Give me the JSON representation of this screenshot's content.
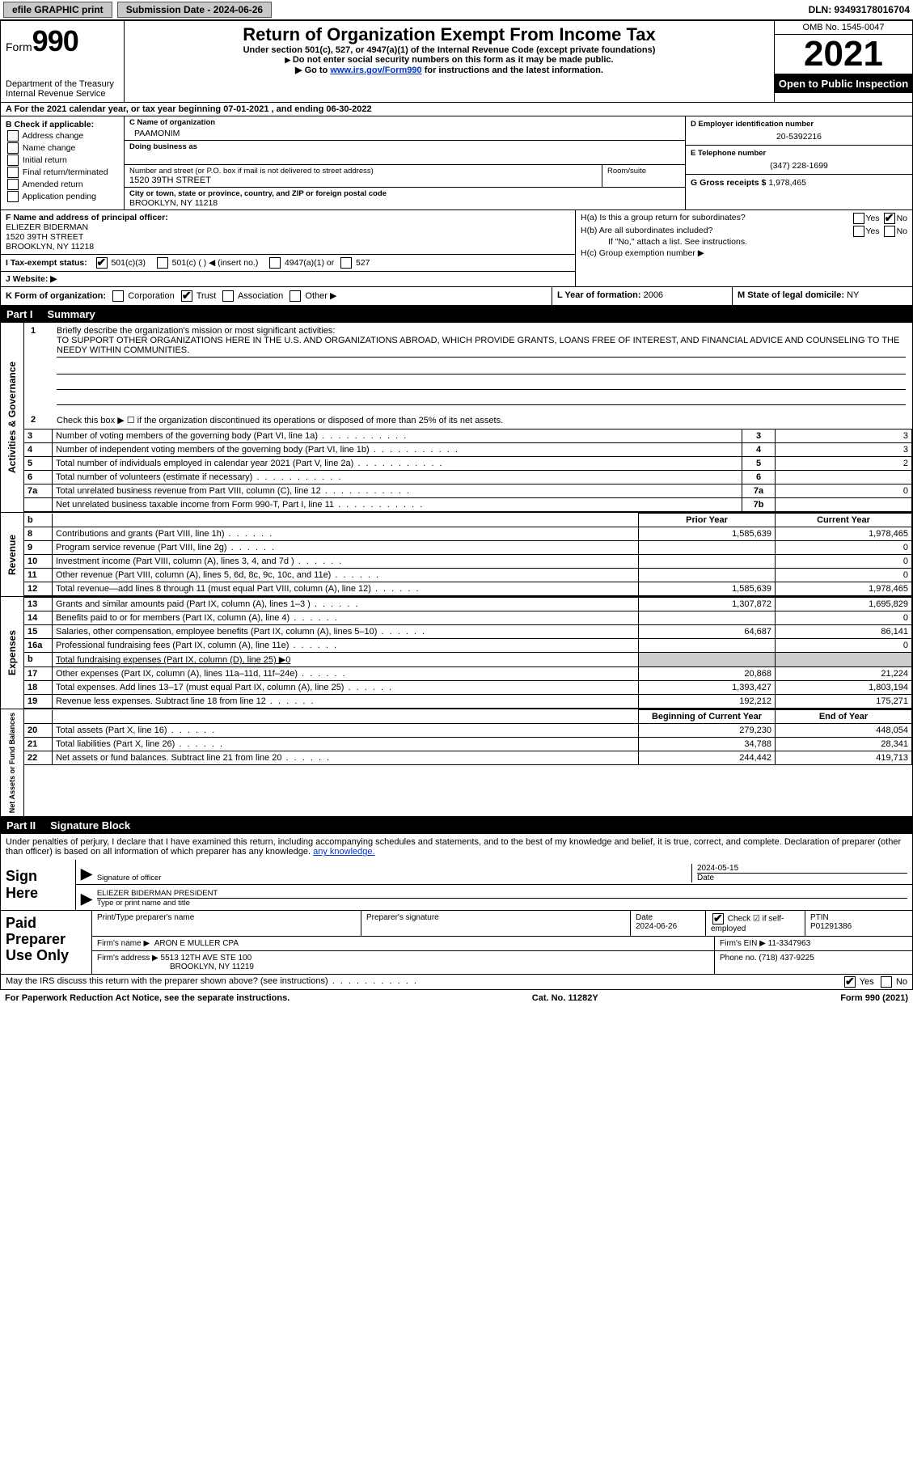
{
  "topbar": {
    "efile_btn": "efile GRAPHIC print",
    "submission_label": "Submission Date - 2024-06-26",
    "dln": "DLN: 93493178016704"
  },
  "header": {
    "form_label": "Form",
    "form_number": "990",
    "dept": "Department of the Treasury",
    "irs": "Internal Revenue Service",
    "title": "Return of Organization Exempt From Income Tax",
    "sub1": "Under section 501(c), 527, or 4947(a)(1) of the Internal Revenue Code (except private foundations)",
    "sub2": "Do not enter social security numbers on this form as it may be made public.",
    "sub3_pre": "Go to ",
    "sub3_link": "www.irs.gov/Form990",
    "sub3_post": " for instructions and the latest information.",
    "omb": "OMB No. 1545-0047",
    "year": "2021",
    "open": "Open to Public Inspection"
  },
  "row_a": "A  For the 2021 calendar year, or tax year beginning 07-01-2021    , and ending 06-30-2022",
  "section_b": {
    "label": "B Check if applicable:",
    "opts": [
      "Address change",
      "Name change",
      "Initial return",
      "Final return/terminated",
      "Amended return",
      "Application pending"
    ]
  },
  "section_c": {
    "name_lab": "C Name of organization",
    "name_val": "PAAMONIM",
    "dba_lab": "Doing business as",
    "addr_lab": "Number and street (or P.O. box if mail is not delivered to street address)",
    "room_lab": "Room/suite",
    "addr_val": "1520 39TH STREET",
    "city_lab": "City or town, state or province, country, and ZIP or foreign postal code",
    "city_val": "BROOKLYN, NY  11218"
  },
  "section_d": {
    "ein_lab": "D Employer identification number",
    "ein_val": "20-5392216",
    "tel_lab": "E Telephone number",
    "tel_val": "(347) 228-1699",
    "gross_lab": "G Gross receipts $",
    "gross_val": "1,978,465"
  },
  "section_f": {
    "lab": "F Name and address of principal officer:",
    "name": "ELIEZER BIDERMAN",
    "addr1": "1520 39TH STREET",
    "addr2": "BROOKLYN, NY  11218"
  },
  "section_h": {
    "a": "H(a)  Is this a group return for subordinates?",
    "b": "H(b)  Are all subordinates included?",
    "bnote": "If \"No,\" attach a list. See instructions.",
    "c": "H(c)  Group exemption number ▶"
  },
  "section_i": {
    "lab": "I  Tax-exempt status:",
    "o1": "501(c)(3)",
    "o2": "501(c) (  ) ◀ (insert no.)",
    "o3": "4947(a)(1) or",
    "o4": "527"
  },
  "section_j": "J  Website: ▶",
  "section_k": {
    "lab": "K Form of organization:",
    "opts": [
      "Corporation",
      "Trust",
      "Association",
      "Other ▶"
    ]
  },
  "section_l": {
    "lab": "L Year of formation:",
    "val": "2006"
  },
  "section_m": {
    "lab": "M State of legal domicile:",
    "val": "NY"
  },
  "part1": {
    "bar": "Part I",
    "title": "Summary"
  },
  "summary": {
    "l1_lab": "Briefly describe the organization's mission or most significant activities:",
    "l1_val": "TO SUPPORT OTHER ORGANIZATIONS HERE IN THE U.S. AND ORGANIZATIONS ABROAD, WHICH PROVIDE GRANTS, LOANS FREE OF INTEREST, AND FINANCIAL ADVICE AND COUNSELING TO THE NEEDY WITHIN COMMUNITIES.",
    "l2": "Check this box ▶ ☐  if the organization discontinued its operations or disposed of more than 25% of its net assets.",
    "rows_single": [
      {
        "n": "3",
        "d": "Number of voting members of the governing body (Part VI, line 1a)",
        "box": "3",
        "v": "3"
      },
      {
        "n": "4",
        "d": "Number of independent voting members of the governing body (Part VI, line 1b)",
        "box": "4",
        "v": "3"
      },
      {
        "n": "5",
        "d": "Total number of individuals employed in calendar year 2021 (Part V, line 2a)",
        "box": "5",
        "v": "2"
      },
      {
        "n": "6",
        "d": "Total number of volunteers (estimate if necessary)",
        "box": "6",
        "v": ""
      },
      {
        "n": "7a",
        "d": "Total unrelated business revenue from Part VIII, column (C), line 12",
        "box": "7a",
        "v": "0"
      },
      {
        "n": "",
        "d": "Net unrelated business taxable income from Form 990-T, Part I, line 11",
        "box": "7b",
        "v": ""
      }
    ],
    "hdr_b": "b",
    "col_prior": "Prior Year",
    "col_current": "Current Year",
    "rev": [
      {
        "n": "8",
        "d": "Contributions and grants (Part VIII, line 1h)",
        "p": "1,585,639",
        "c": "1,978,465"
      },
      {
        "n": "9",
        "d": "Program service revenue (Part VIII, line 2g)",
        "p": "",
        "c": "0"
      },
      {
        "n": "10",
        "d": "Investment income (Part VIII, column (A), lines 3, 4, and 7d )",
        "p": "",
        "c": "0"
      },
      {
        "n": "11",
        "d": "Other revenue (Part VIII, column (A), lines 5, 6d, 8c, 9c, 10c, and 11e)",
        "p": "",
        "c": "0"
      },
      {
        "n": "12",
        "d": "Total revenue—add lines 8 through 11 (must equal Part VIII, column (A), line 12)",
        "p": "1,585,639",
        "c": "1,978,465"
      }
    ],
    "exp": [
      {
        "n": "13",
        "d": "Grants and similar amounts paid (Part IX, column (A), lines 1–3 )",
        "p": "1,307,872",
        "c": "1,695,829"
      },
      {
        "n": "14",
        "d": "Benefits paid to or for members (Part IX, column (A), line 4)",
        "p": "",
        "c": "0"
      },
      {
        "n": "15",
        "d": "Salaries, other compensation, employee benefits (Part IX, column (A), lines 5–10)",
        "p": "64,687",
        "c": "86,141"
      },
      {
        "n": "16a",
        "d": "Professional fundraising fees (Part IX, column (A), line 11e)",
        "p": "",
        "c": "0"
      },
      {
        "n": "b",
        "d": "Total fundraising expenses (Part IX, column (D), line 25) ▶0",
        "p": "__shade__",
        "c": "__shade__"
      },
      {
        "n": "17",
        "d": "Other expenses (Part IX, column (A), lines 11a–11d, 11f–24e)",
        "p": "20,868",
        "c": "21,224"
      },
      {
        "n": "18",
        "d": "Total expenses. Add lines 13–17 (must equal Part IX, column (A), line 25)",
        "p": "1,393,427",
        "c": "1,803,194"
      },
      {
        "n": "19",
        "d": "Revenue less expenses. Subtract line 18 from line 12",
        "p": "192,212",
        "c": "175,271"
      }
    ],
    "col_begin": "Beginning of Current Year",
    "col_end": "End of Year",
    "net": [
      {
        "n": "20",
        "d": "Total assets (Part X, line 16)",
        "p": "279,230",
        "c": "448,054"
      },
      {
        "n": "21",
        "d": "Total liabilities (Part X, line 26)",
        "p": "34,788",
        "c": "28,341"
      },
      {
        "n": "22",
        "d": "Net assets or fund balances. Subtract line 21 from line 20",
        "p": "244,442",
        "c": "419,713"
      }
    ],
    "tab_ag": "Activities & Governance",
    "tab_rev": "Revenue",
    "tab_exp": "Expenses",
    "tab_net": "Net Assets or Fund Balances"
  },
  "part2": {
    "bar": "Part II",
    "title": "Signature Block"
  },
  "sig": {
    "decl": "Under penalties of perjury, I declare that I have examined this return, including accompanying schedules and statements, and to the best of my knowledge and belief, it is true, correct, and complete. Declaration of preparer (other than officer) is based on all information of which preparer has any knowledge.",
    "sign_here": "Sign Here",
    "sig_officer": "Signature of officer",
    "date_lab": "Date",
    "date_val": "2024-05-15",
    "name_title_lab": "Type or print name and title",
    "name_title_val": "ELIEZER BIDERMAN  PRESIDENT"
  },
  "prep": {
    "lab": "Paid Preparer Use Only",
    "print_lab": "Print/Type preparer's name",
    "sig_lab": "Preparer's signature",
    "date_lab": "Date",
    "date_val": "2024-06-26",
    "check_lab": "Check ☑ if self-employed",
    "ptin_lab": "PTIN",
    "ptin_val": "P01291386",
    "firm_name_lab": "Firm's name    ▶",
    "firm_name_val": "ARON E MULLER CPA",
    "firm_ein_lab": "Firm's EIN ▶",
    "firm_ein_val": "11-3347963",
    "firm_addr_lab": "Firm's address ▶",
    "firm_addr_val1": "5513 12TH AVE STE 100",
    "firm_addr_val2": "BROOKLYN, NY  11219",
    "phone_lab": "Phone no.",
    "phone_val": "(718) 437-9225"
  },
  "footer": {
    "discuss": "May the IRS discuss this return with the preparer shown above? (see instructions)",
    "yes": "Yes",
    "no": "No",
    "pra": "For Paperwork Reduction Act Notice, see the separate instructions.",
    "cat": "Cat. No. 11282Y",
    "form": "Form 990 (2021)"
  }
}
